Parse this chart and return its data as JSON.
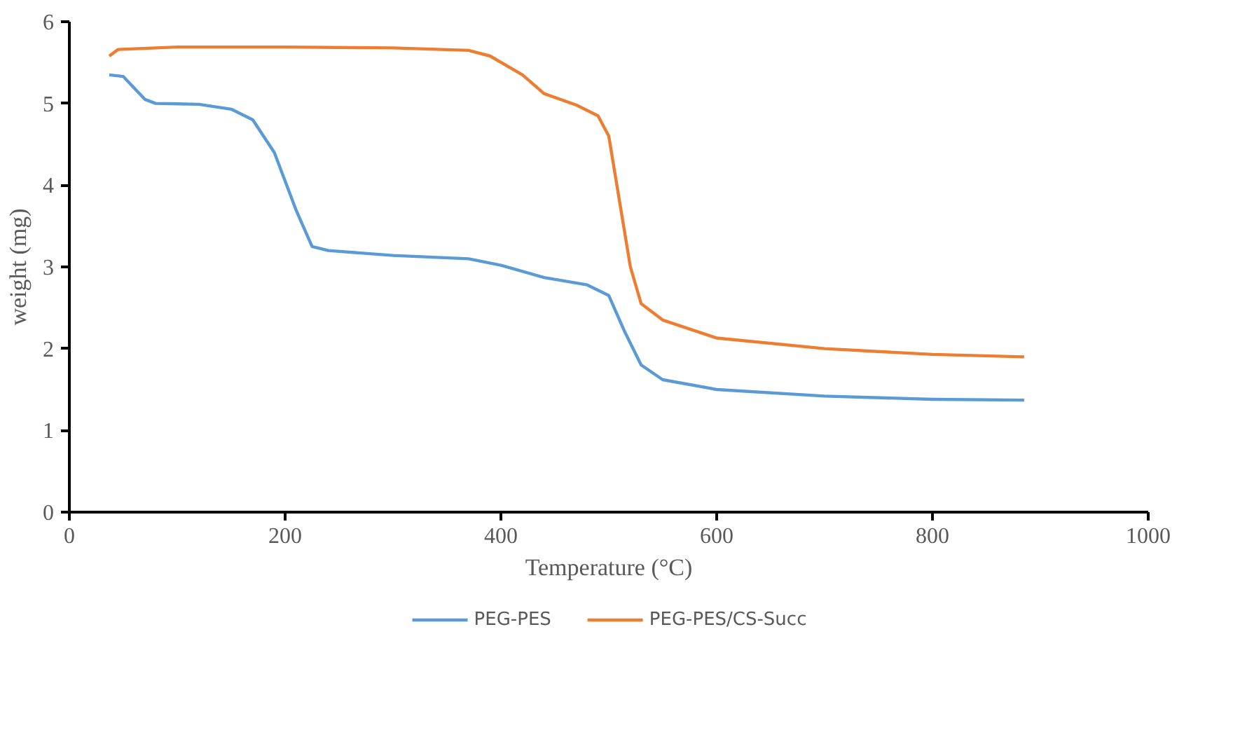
{
  "chart_data": {
    "type": "line",
    "xlabel": "Temperature (°C)",
    "ylabel": "weight (mg)",
    "xlim": [
      0,
      1000
    ],
    "xticks": [
      0,
      200,
      400,
      600,
      800,
      1000
    ],
    "ylim": [
      0,
      6
    ],
    "yticks": [
      0,
      1,
      2,
      3,
      4,
      5,
      6
    ],
    "grid": false,
    "legend": "bottom",
    "marker": "none",
    "line_style": "solid",
    "series": [
      {
        "name": "PEG-PES",
        "color": "#5b9bd5",
        "x": [
          37,
          50,
          70,
          80,
          120,
          150,
          170,
          190,
          210,
          225,
          240,
          300,
          370,
          400,
          440,
          480,
          500,
          515,
          530,
          550,
          600,
          700,
          800,
          885
        ],
        "values": [
          5.35,
          5.33,
          5.05,
          5.0,
          4.99,
          4.93,
          4.8,
          4.4,
          3.7,
          3.25,
          3.2,
          3.14,
          3.1,
          3.02,
          2.87,
          2.78,
          2.65,
          2.2,
          1.8,
          1.62,
          1.5,
          1.42,
          1.38,
          1.37
        ]
      },
      {
        "name": "PEG-PES/CS-Succ",
        "color": "#ed7d31",
        "x": [
          37,
          45,
          100,
          200,
          300,
          370,
          390,
          420,
          440,
          470,
          490,
          500,
          510,
          520,
          530,
          550,
          600,
          700,
          800,
          885
        ],
        "values": [
          5.58,
          5.66,
          5.69,
          5.69,
          5.68,
          5.65,
          5.58,
          5.35,
          5.12,
          4.98,
          4.85,
          4.6,
          3.8,
          3.0,
          2.55,
          2.35,
          2.13,
          2.0,
          1.93,
          1.9
        ]
      }
    ]
  }
}
